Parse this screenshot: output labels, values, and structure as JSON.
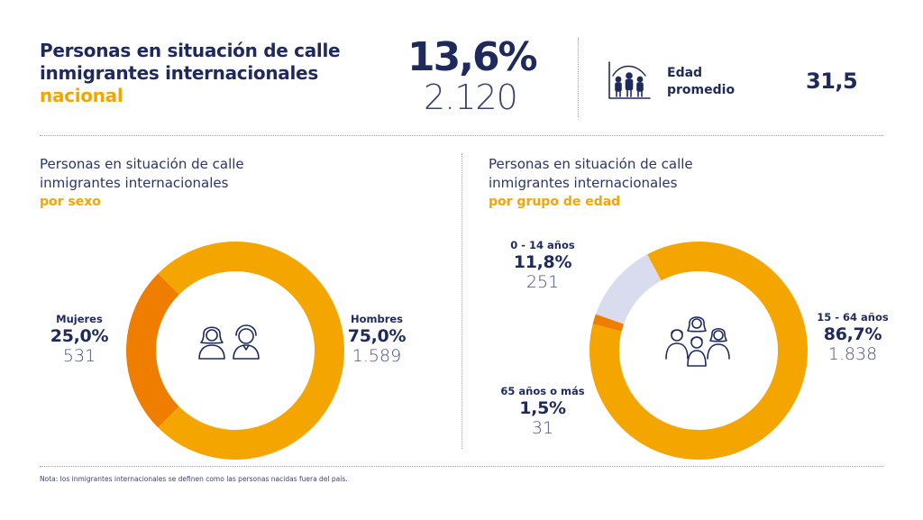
{
  "header": {
    "title_line1": "Personas en situación de calle",
    "title_line2": "inmigrantes internacionales",
    "title_line3": "nacional",
    "headline_pct": "13,6%",
    "headline_count": "2.120",
    "age_label_line1": "Edad",
    "age_label_line2": "promedio",
    "age_value": "31,5",
    "age_icon": "family-age-chart-icon"
  },
  "colors": {
    "navy": "#1f2a5c",
    "orange": "#f5a500",
    "dark_orange": "#ee7d00",
    "light_lavender": "#d8dcee"
  },
  "chart_data": [
    {
      "type": "pie",
      "title_line1": "Personas en situación de calle",
      "title_line2": "inmigrantes internacionales",
      "title_line3": "por sexo",
      "donut": true,
      "center_icon": "woman-man-icon",
      "slices": [
        {
          "name": "Mujeres",
          "percent": 25.0,
          "percent_label": "25,0%",
          "count": 531,
          "count_label": "531",
          "color": "#ee7d00"
        },
        {
          "name": "Hombres",
          "percent": 75.0,
          "percent_label": "75,0%",
          "count": 1589,
          "count_label": "1.589",
          "color": "#f5a500"
        }
      ]
    },
    {
      "type": "pie",
      "title_line1": "Personas en situación de calle",
      "title_line2": "inmigrantes internacionales",
      "title_line3": "por grupo de edad",
      "donut": true,
      "center_icon": "family-group-icon",
      "slices": [
        {
          "name": "0 - 14 años",
          "percent": 11.8,
          "percent_label": "11,8%",
          "count": 251,
          "count_label": "251",
          "color": "#d8dcee"
        },
        {
          "name": "15 - 64 años",
          "percent": 86.7,
          "percent_label": "86,7%",
          "count": 1838,
          "count_label": "1.838",
          "color": "#f5a500"
        },
        {
          "name": "65 años o más",
          "percent": 1.5,
          "percent_label": "1,5%",
          "count": 31,
          "count_label": "31",
          "color": "#ee7d00"
        }
      ]
    }
  ],
  "footer": {
    "note": "Nota: los inmigrantes internacionales se definen como las personas nacidas fuera del país."
  }
}
